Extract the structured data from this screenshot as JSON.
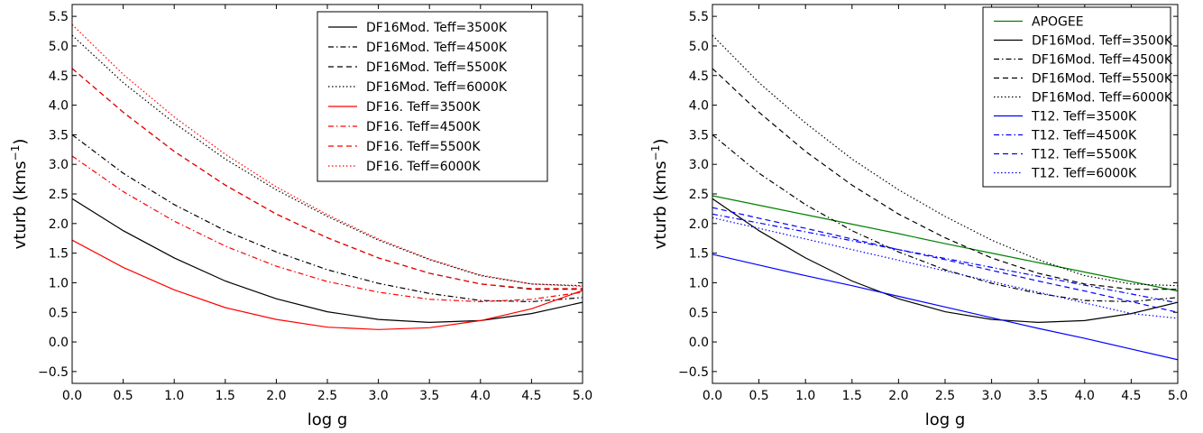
{
  "chart_data": [
    {
      "type": "line",
      "xlabel": "log g",
      "ylabel": "vturb (kms",
      "ylabel_sup": "−1",
      "ylabel_close": ")",
      "xlim": [
        0.0,
        5.0
      ],
      "ylim": [
        -0.7,
        5.7
      ],
      "xticks": [
        "0.0",
        "0.5",
        "1.0",
        "1.5",
        "2.0",
        "2.5",
        "3.0",
        "3.5",
        "4.0",
        "4.5",
        "5.0"
      ],
      "yticks": [
        "−0.5",
        "0.0",
        "0.5",
        "1.0",
        "1.5",
        "2.0",
        "2.5",
        "3.0",
        "3.5",
        "4.0",
        "4.5",
        "5.0",
        "5.5"
      ],
      "legend_position": "top-right",
      "x": [
        0.0,
        0.5,
        1.0,
        1.5,
        2.0,
        2.5,
        3.0,
        3.5,
        4.0,
        4.5,
        5.0
      ],
      "series": [
        {
          "name": "DF16Mod. Teff=3500K",
          "color": "#000000",
          "dash": "solid",
          "values": [
            2.42,
            1.88,
            1.42,
            1.03,
            0.73,
            0.51,
            0.38,
            0.33,
            0.36,
            0.48,
            0.67
          ]
        },
        {
          "name": "DF16Mod. Teff=4500K",
          "color": "#000000",
          "dash": "dashdot",
          "values": [
            3.5,
            2.85,
            2.32,
            1.88,
            1.52,
            1.22,
            0.99,
            0.82,
            0.7,
            0.68,
            0.75
          ]
        },
        {
          "name": "DF16Mod. Teff=5500K",
          "color": "#000000",
          "dash": "dashed",
          "values": [
            4.62,
            3.88,
            3.22,
            2.65,
            2.16,
            1.76,
            1.42,
            1.16,
            0.98,
            0.89,
            0.89
          ]
        },
        {
          "name": "DF16Mod. Teff=6000K",
          "color": "#000000",
          "dash": "dotted",
          "values": [
            5.18,
            4.38,
            3.7,
            3.09,
            2.57,
            2.12,
            1.72,
            1.39,
            1.12,
            0.98,
            0.95
          ]
        },
        {
          "name": "DF16. Teff=3500K",
          "color": "#ff0000",
          "dash": "solid",
          "values": [
            1.72,
            1.26,
            0.88,
            0.58,
            0.38,
            0.25,
            0.21,
            0.24,
            0.36,
            0.56,
            0.87
          ]
        },
        {
          "name": "DF16. Teff=4500K",
          "color": "#ff0000",
          "dash": "dashdot",
          "values": [
            3.14,
            2.54,
            2.04,
            1.62,
            1.28,
            1.02,
            0.84,
            0.72,
            0.68,
            0.72,
            0.84
          ]
        },
        {
          "name": "DF16. Teff=5500K",
          "color": "#ff0000",
          "dash": "dashed",
          "values": [
            4.62,
            3.88,
            3.22,
            2.65,
            2.16,
            1.76,
            1.42,
            1.16,
            0.98,
            0.9,
            0.9
          ]
        },
        {
          "name": "DF16. Teff=6000K",
          "color": "#ff0000",
          "dash": "dotted",
          "values": [
            5.36,
            4.52,
            3.8,
            3.17,
            2.62,
            2.15,
            1.74,
            1.4,
            1.13,
            0.98,
            0.94
          ]
        }
      ]
    },
    {
      "type": "line",
      "xlabel": "log g",
      "ylabel": "vturb (kms",
      "ylabel_sup": "−1",
      "ylabel_close": ")",
      "xlim": [
        0.0,
        5.0
      ],
      "ylim": [
        -0.7,
        5.7
      ],
      "xticks": [
        "0.0",
        "0.5",
        "1.0",
        "1.5",
        "2.0",
        "2.5",
        "3.0",
        "3.5",
        "4.0",
        "4.5",
        "5.0"
      ],
      "yticks": [
        "−0.5",
        "0.0",
        "0.5",
        "1.0",
        "1.5",
        "2.0",
        "2.5",
        "3.0",
        "3.5",
        "4.0",
        "4.5",
        "5.0",
        "5.5"
      ],
      "legend_position": "top-right",
      "x": [
        0.0,
        0.5,
        1.0,
        1.5,
        2.0,
        2.5,
        3.0,
        3.5,
        4.0,
        4.5,
        5.0
      ],
      "series": [
        {
          "name": "APOGEE",
          "color": "#008000",
          "dash": "solid",
          "values": [
            2.47,
            2.31,
            2.15,
            1.99,
            1.83,
            1.66,
            1.5,
            1.34,
            1.18,
            1.02,
            0.86
          ]
        },
        {
          "name": "DF16Mod. Teff=3500K",
          "color": "#000000",
          "dash": "solid",
          "values": [
            2.42,
            1.88,
            1.42,
            1.03,
            0.73,
            0.51,
            0.38,
            0.33,
            0.36,
            0.48,
            0.67
          ]
        },
        {
          "name": "DF16Mod. Teff=4500K",
          "color": "#000000",
          "dash": "dashdot",
          "values": [
            3.5,
            2.85,
            2.32,
            1.88,
            1.52,
            1.22,
            0.99,
            0.82,
            0.7,
            0.68,
            0.75
          ]
        },
        {
          "name": "DF16Mod. Teff=5500K",
          "color": "#000000",
          "dash": "dashed",
          "values": [
            4.62,
            3.88,
            3.22,
            2.65,
            2.16,
            1.76,
            1.42,
            1.16,
            0.98,
            0.89,
            0.89
          ]
        },
        {
          "name": "DF16Mod. Teff=6000K",
          "color": "#000000",
          "dash": "dotted",
          "values": [
            5.18,
            4.38,
            3.7,
            3.09,
            2.57,
            2.12,
            1.72,
            1.39,
            1.12,
            0.98,
            0.95
          ]
        },
        {
          "name": "T12. Teff=3500K",
          "color": "#0000ff",
          "dash": "solid",
          "values": [
            1.48,
            1.3,
            1.12,
            0.95,
            0.77,
            0.59,
            0.41,
            0.23,
            0.06,
            -0.12,
            -0.3
          ]
        },
        {
          "name": "T12. Teff=4500K",
          "color": "#0000ff",
          "dash": "dashdot",
          "values": [
            2.16,
            2.01,
            1.86,
            1.71,
            1.56,
            1.41,
            1.26,
            1.11,
            0.96,
            0.81,
            0.66
          ]
        },
        {
          "name": "T12. Teff=5500K",
          "color": "#0000ff",
          "dash": "dashed",
          "values": [
            2.27,
            2.09,
            1.92,
            1.74,
            1.56,
            1.39,
            1.21,
            1.03,
            0.86,
            0.68,
            0.5
          ]
        },
        {
          "name": "T12. Teff=6000K",
          "color": "#0000ff",
          "dash": "dotted",
          "values": [
            2.1,
            1.92,
            1.74,
            1.56,
            1.38,
            1.2,
            1.02,
            0.84,
            0.66,
            0.48,
            0.4
          ]
        }
      ]
    }
  ]
}
